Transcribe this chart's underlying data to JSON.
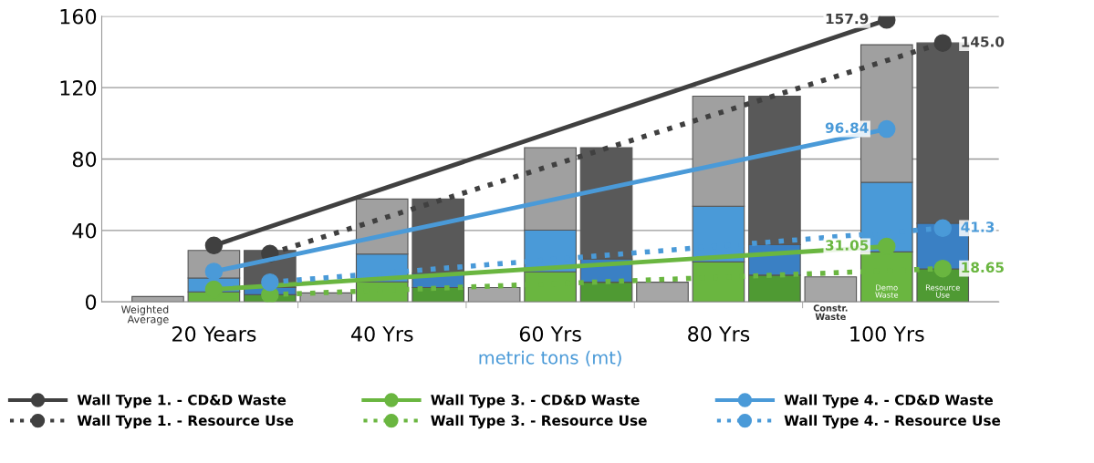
{
  "chart_data": {
    "type": "bar",
    "stacked": true,
    "categories": [
      null,
      "20 Years",
      null,
      null,
      "40 Yrs",
      null,
      null,
      "60 Yrs",
      null,
      null,
      "80 Yrs",
      null,
      null,
      "100 Yrs",
      null
    ],
    "xlabel": "metric tons (mt)",
    "ylim": [
      0,
      160
    ],
    "yticks": [
      0,
      40,
      80,
      120,
      160
    ],
    "grid": "y",
    "legend": "bottom",
    "marker": "circle",
    "annotations": [
      "Weighted Average",
      "Constr. Waste",
      "Demo Waste",
      "Resource Use"
    ],
    "series": [
      {
        "color": "#a6a6a6",
        "values": [
          3,
          null,
          null,
          5,
          null,
          null,
          8,
          null,
          null,
          11,
          null,
          null,
          14,
          null,
          null
        ]
      },
      {
        "colors": [
          null,
          "#6ab640",
          "#4f9a33",
          null,
          "#6ab640",
          "#4f9a33",
          null,
          "#6ab640",
          "#4f9a33",
          null,
          "#6ab640",
          "#4f9a33",
          null,
          "#6ab640",
          "#4f9a33"
        ],
        "values": [
          null,
          5.6,
          4,
          null,
          11.2,
          8,
          null,
          16.8,
          11,
          null,
          22.4,
          15,
          null,
          28,
          18.5
        ]
      },
      {
        "colors": [
          null,
          "#4a9ad8",
          "#3a80c4",
          null,
          "#4a9ad8",
          "#3a80c4",
          null,
          "#4a9ad8",
          "#3a80c4",
          null,
          "#4a9ad8",
          "#3a80c4",
          null,
          "#4a9ad8",
          "#3a80c4"
        ],
        "values": [
          null,
          7.8,
          4,
          null,
          15.6,
          8,
          null,
          23.4,
          13,
          null,
          31.2,
          17,
          null,
          39,
          25.5
        ]
      },
      {
        "colors": [
          null,
          "#a0a0a0",
          "#595959",
          null,
          "#a0a0a0",
          "#595959",
          null,
          "#a0a0a0",
          "#595959",
          null,
          "#a0a0a0",
          "#595959",
          null,
          "#a0a0a0",
          "#595959"
        ],
        "values": [
          null,
          15.4,
          20.8,
          null,
          30.8,
          41.6,
          null,
          46.2,
          62.4,
          null,
          61.6,
          83.2,
          null,
          77,
          101
        ]
      },
      {
        "type": "line",
        "name": "Wall Type 1. - CD&D Waste",
        "color": "#404040",
        "line_style": "solid",
        "values": [
          null,
          31.6,
          null,
          null,
          null,
          null,
          null,
          null,
          null,
          null,
          null,
          null,
          null,
          157.9,
          null
        ],
        "value_labels": [
          null,
          null,
          null,
          null,
          null,
          null,
          null,
          null,
          null,
          null,
          null,
          null,
          null,
          "157.9",
          null
        ]
      },
      {
        "type": "line",
        "name": "Wall Type 1. - Resource Use",
        "color": "#404040",
        "line_style": "dotted",
        "values": [
          null,
          null,
          27,
          null,
          null,
          null,
          null,
          null,
          null,
          null,
          null,
          null,
          null,
          null,
          145.0
        ],
        "value_labels": [
          null,
          null,
          null,
          null,
          null,
          null,
          null,
          null,
          null,
          null,
          null,
          null,
          null,
          null,
          "145.0"
        ]
      },
      {
        "type": "line",
        "name": "Wall Type 3. - CD&D Waste",
        "color": "#6ab640",
        "line_style": "solid",
        "values": [
          null,
          7,
          null,
          null,
          null,
          null,
          null,
          null,
          null,
          null,
          null,
          null,
          null,
          31.05,
          null
        ],
        "value_labels": [
          null,
          null,
          null,
          null,
          null,
          null,
          null,
          null,
          null,
          null,
          null,
          null,
          null,
          "31.05",
          null
        ]
      },
      {
        "type": "line",
        "name": "Wall Type 3. - Resource Use",
        "color": "#6ab640",
        "line_style": "dotted",
        "values": [
          null,
          null,
          4,
          null,
          null,
          null,
          null,
          null,
          null,
          null,
          null,
          null,
          null,
          null,
          18.65
        ],
        "value_labels": [
          null,
          null,
          null,
          null,
          null,
          null,
          null,
          null,
          null,
          null,
          null,
          null,
          null,
          null,
          "18.65"
        ]
      },
      {
        "type": "line",
        "name": "Wall Type 4. - CD&D Waste",
        "color": "#4a9ad8",
        "line_style": "solid",
        "values": [
          null,
          17,
          null,
          null,
          null,
          null,
          null,
          null,
          null,
          null,
          null,
          null,
          null,
          96.84,
          null
        ],
        "value_labels": [
          null,
          null,
          null,
          null,
          null,
          null,
          null,
          null,
          null,
          null,
          null,
          null,
          null,
          "96.84",
          null
        ]
      },
      {
        "type": "line",
        "name": "Wall Type 4. - Resource Use",
        "color": "#4a9ad8",
        "line_style": "dotted",
        "values": [
          null,
          null,
          11,
          null,
          null,
          null,
          null,
          null,
          null,
          null,
          null,
          null,
          null,
          null,
          41.3
        ],
        "value_labels": [
          null,
          null,
          null,
          null,
          null,
          null,
          null,
          null,
          null,
          null,
          null,
          null,
          null,
          null,
          "41.3"
        ]
      }
    ]
  }
}
